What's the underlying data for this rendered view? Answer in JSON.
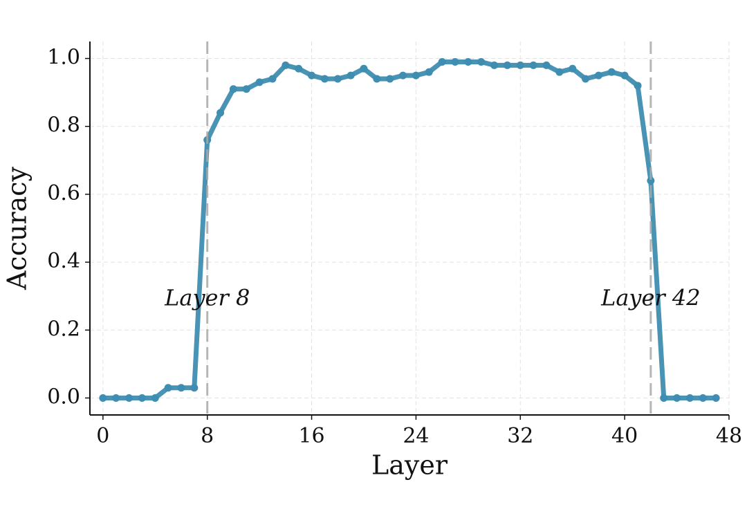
{
  "chart_data": {
    "type": "line",
    "x": [
      0,
      1,
      2,
      3,
      4,
      5,
      6,
      7,
      8,
      9,
      10,
      11,
      12,
      13,
      14,
      15,
      16,
      17,
      18,
      19,
      20,
      21,
      22,
      23,
      24,
      25,
      26,
      27,
      28,
      29,
      30,
      31,
      32,
      33,
      34,
      35,
      36,
      37,
      38,
      39,
      40,
      41,
      42,
      43,
      44,
      45,
      46,
      47
    ],
    "series": [
      {
        "color": "#3f8db0",
        "values": [
          0,
          0,
          0,
          0,
          0,
          0.03,
          0.03,
          0.03,
          0.76,
          0.84,
          0.91,
          0.91,
          0.93,
          0.94,
          0.98,
          0.97,
          0.95,
          0.94,
          0.94,
          0.95,
          0.97,
          0.94,
          0.94,
          0.95,
          0.95,
          0.96,
          0.99,
          0.99,
          0.99,
          0.99,
          0.98,
          0.98,
          0.98,
          0.98,
          0.98,
          0.96,
          0.97,
          0.94,
          0.95,
          0.96,
          0.95,
          0.92,
          0.64,
          0,
          0,
          0,
          0,
          0
        ]
      }
    ],
    "x_label": "Layer",
    "y_label": "Accuracy",
    "xlim": [
      -1,
      48
    ],
    "ylim": [
      -0.05,
      1.05
    ],
    "xticks": [
      0,
      8,
      16,
      24,
      32,
      40,
      48
    ],
    "yticks": [
      {
        "value": 0,
        "label": "0.0"
      },
      {
        "value": 0.2,
        "label": "0.2"
      },
      {
        "value": 0.4,
        "label": "0.4"
      },
      {
        "value": 0.6,
        "label": "0.6"
      },
      {
        "value": 0.8,
        "label": "0.8"
      },
      {
        "value": 1,
        "label": "1.0"
      }
    ],
    "grid": true,
    "annotations": [
      {
        "text": "Layer 8",
        "x": 8,
        "y": 0.29
      },
      {
        "text": "Layer 42",
        "x": 42,
        "y": 0.29
      }
    ]
  }
}
